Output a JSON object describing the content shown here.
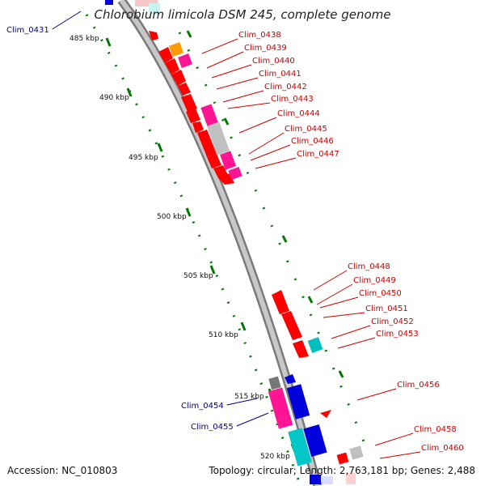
{
  "title": "Chlorobium limicola DSM 245, complete genome",
  "footer": {
    "accession": "Accession: NC_010803",
    "summary": "Topology: circular; Length: 2,763,181 bp; Genes: 2,488"
  },
  "colors": {
    "backbone": "#999999",
    "tick": "#007700",
    "forward_label": "#00008b",
    "reverse_label": "#cc0000",
    "red_gene": "#ff0000",
    "pink_gene": "#ff1493",
    "cyan_gene": "#00c8c8",
    "blue_gene": "#0000dd",
    "grey_gene": "#c0c0c0",
    "orange_gene": "#ff9900"
  },
  "scale_labels": [
    "485 kbp",
    "490 kbp",
    "495 kbp",
    "500 kbp",
    "505 kbp",
    "510 kbp",
    "515 kbp",
    "520 kbp"
  ],
  "gene_labels_left": [
    "Clim_0431",
    "Clim_0454",
    "Clim_0455"
  ],
  "gene_labels_right": [
    "Clim_0438",
    "Clim_0439",
    "Clim_0440",
    "Clim_0441",
    "Clim_0442",
    "Clim_0443",
    "Clim_0444",
    "Clim_0445",
    "Clim_0446",
    "Clim_0447",
    "Clim_0448",
    "Clim_0449",
    "Clim_0450",
    "Clim_0451",
    "Clim_0452",
    "Clim_0453",
    "Clim_0456",
    "Clim_0458",
    "Clim_0460"
  ]
}
